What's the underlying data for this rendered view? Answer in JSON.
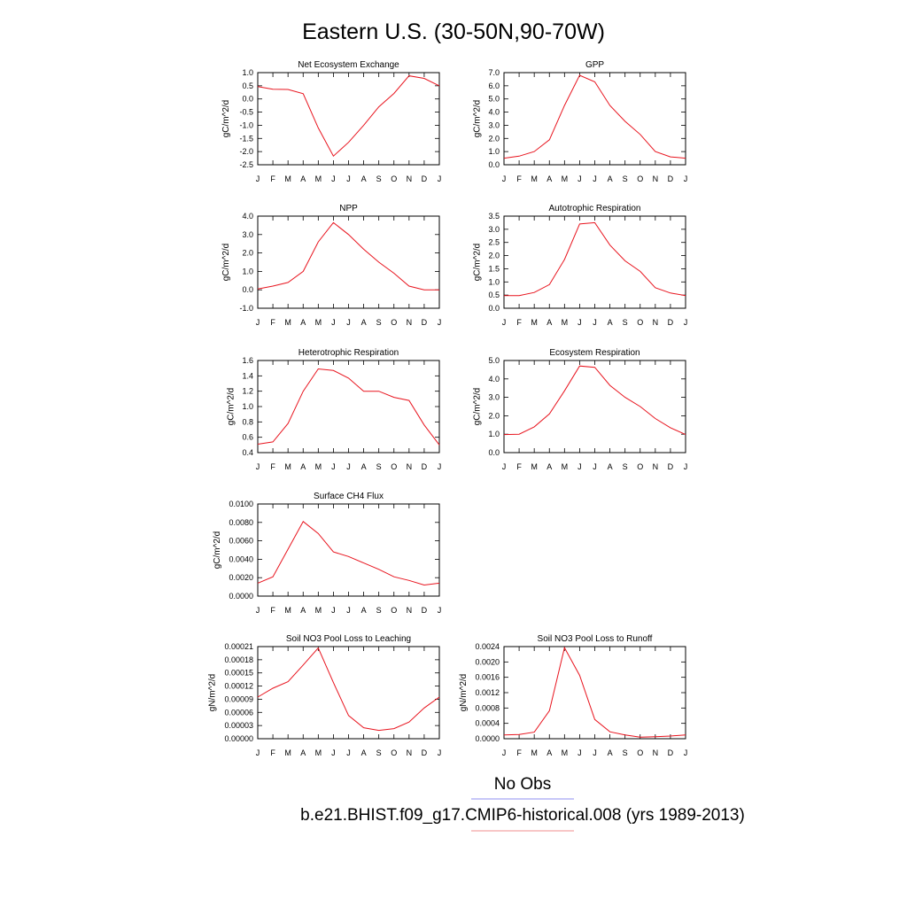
{
  "title": "Eastern U.S. (30-50N,90-70W)",
  "chart_data": [
    {
      "type": "line",
      "title": "Net Ecosystem Exchange",
      "ylabel": "gC/m^2/d",
      "categories": [
        "J",
        "F",
        "M",
        "A",
        "M",
        "J",
        "J",
        "A",
        "S",
        "O",
        "N",
        "D",
        "J"
      ],
      "values": [
        0.47,
        0.37,
        0.36,
        0.2,
        -1.1,
        -2.17,
        -1.65,
        -1.0,
        -0.3,
        0.21,
        0.88,
        0.78,
        0.5
      ],
      "ylim": [
        -2.5,
        1.0
      ],
      "yticks": [
        "1.0",
        "0.5",
        "0.0",
        "-0.5",
        "-1.0",
        "-1.5",
        "-2.0",
        "-2.5"
      ]
    },
    {
      "type": "line",
      "title": "GPP",
      "ylabel": "gC/m^2/d",
      "categories": [
        "J",
        "F",
        "M",
        "A",
        "M",
        "J",
        "J",
        "A",
        "S",
        "O",
        "N",
        "D",
        "J"
      ],
      "values": [
        0.5,
        0.65,
        1.0,
        1.9,
        4.5,
        6.8,
        6.3,
        4.5,
        3.3,
        2.3,
        1.0,
        0.6,
        0.5
      ],
      "ylim": [
        0.0,
        7.0
      ],
      "yticks": [
        "7.0",
        "6.0",
        "5.0",
        "4.0",
        "3.0",
        "2.0",
        "1.0",
        "0.0"
      ]
    },
    {
      "type": "line",
      "title": "NPP",
      "ylabel": "gC/m^2/d",
      "categories": [
        "J",
        "F",
        "M",
        "A",
        "M",
        "J",
        "J",
        "A",
        "S",
        "O",
        "N",
        "D",
        "J"
      ],
      "values": [
        0.05,
        0.2,
        0.4,
        1.0,
        2.6,
        3.65,
        3.0,
        2.2,
        1.5,
        0.9,
        0.2,
        0.0,
        0.0
      ],
      "ylim": [
        -1.0,
        4.0
      ],
      "yticks": [
        "4.0",
        "3.0",
        "2.0",
        "1.0",
        "0.0",
        "-1.0"
      ]
    },
    {
      "type": "line",
      "title": "Autotrophic Respiration",
      "ylabel": "gC/m^2/d",
      "categories": [
        "J",
        "F",
        "M",
        "A",
        "M",
        "J",
        "J",
        "A",
        "S",
        "O",
        "N",
        "D",
        "J"
      ],
      "values": [
        0.48,
        0.48,
        0.6,
        0.9,
        1.85,
        3.2,
        3.25,
        2.4,
        1.8,
        1.4,
        0.78,
        0.58,
        0.48
      ],
      "ylim": [
        0.0,
        3.5
      ],
      "yticks": [
        "3.5",
        "3.0",
        "2.5",
        "2.0",
        "1.5",
        "1.0",
        "0.5",
        "0.0"
      ]
    },
    {
      "type": "line",
      "title": "Heterotrophic Respiration",
      "ylabel": "gC/m^2/d",
      "categories": [
        "J",
        "F",
        "M",
        "A",
        "M",
        "J",
        "J",
        "A",
        "S",
        "O",
        "N",
        "D",
        "J"
      ],
      "values": [
        0.51,
        0.54,
        0.78,
        1.2,
        1.49,
        1.47,
        1.37,
        1.2,
        1.2,
        1.12,
        1.08,
        0.76,
        0.5
      ],
      "ylim": [
        0.4,
        1.6
      ],
      "yticks": [
        "1.6",
        "1.4",
        "1.2",
        "1.0",
        "0.8",
        "0.6",
        "0.4"
      ]
    },
    {
      "type": "line",
      "title": "Ecosystem Respiration",
      "ylabel": "gC/m^2/d",
      "categories": [
        "J",
        "F",
        "M",
        "A",
        "M",
        "J",
        "J",
        "A",
        "S",
        "O",
        "N",
        "D",
        "J"
      ],
      "values": [
        0.98,
        1.0,
        1.4,
        2.1,
        3.35,
        4.7,
        4.63,
        3.65,
        3.0,
        2.5,
        1.85,
        1.35,
        0.98
      ],
      "ylim": [
        0.0,
        5.0
      ],
      "yticks": [
        "5.0",
        "4.0",
        "3.0",
        "2.0",
        "1.0",
        "0.0"
      ]
    },
    {
      "type": "line",
      "title": "Surface CH4 Flux",
      "ylabel": "gC/m^2/d",
      "categories": [
        "J",
        "F",
        "M",
        "A",
        "M",
        "J",
        "J",
        "A",
        "S",
        "O",
        "N",
        "D",
        "J"
      ],
      "values": [
        0.0014,
        0.0021,
        0.0051,
        0.0081,
        0.0068,
        0.0048,
        0.0043,
        0.0036,
        0.0029,
        0.0021,
        0.0017,
        0.0012,
        0.0014
      ],
      "ylim": [
        0.0,
        0.01
      ],
      "yticks": [
        "0.0100",
        "0.0080",
        "0.0060",
        "0.0040",
        "0.0020",
        "0.0000"
      ]
    },
    {
      "type": "line",
      "title": "Soil NO3 Pool Loss to Leaching",
      "ylabel": "gN/m^2/d",
      "categories": [
        "J",
        "F",
        "M",
        "A",
        "M",
        "J",
        "J",
        "A",
        "S",
        "O",
        "N",
        "D",
        "J"
      ],
      "values": [
        9.5e-05,
        0.000115,
        0.00013,
        0.000168,
        0.000207,
        0.000128,
        5.3e-05,
        2.5e-05,
        1.9e-05,
        2.3e-05,
        3.8e-05,
        7e-05,
        9.5e-05
      ],
      "ylim": [
        0.0,
        0.00021
      ],
      "yticks": [
        "0.00021",
        "0.00018",
        "0.00015",
        "0.00012",
        "0.00009",
        "0.00006",
        "0.00003",
        "0.00000"
      ]
    },
    {
      "type": "line",
      "title": "Soil NO3 Pool Loss to Runoff",
      "ylabel": "gN/m^2/d",
      "categories": [
        "J",
        "F",
        "M",
        "A",
        "M",
        "J",
        "J",
        "A",
        "S",
        "O",
        "N",
        "D",
        "J"
      ],
      "values": [
        0.0001,
        0.00011,
        0.00017,
        0.00073,
        0.00237,
        0.00165,
        0.0005,
        0.00018,
        0.0001,
        4e-05,
        5e-05,
        7e-05,
        0.0001
      ],
      "ylim": [
        0.0,
        0.0024
      ],
      "yticks": [
        "0.0024",
        "0.0020",
        "0.0016",
        "0.0012",
        "0.0008",
        "0.0004",
        "0.0000"
      ]
    }
  ],
  "legend": {
    "obs_label": "No Obs",
    "obs_color": "#8f8ff0",
    "model_label": "b.e21.BHIST.f09_g17.CMIP6-historical.008 (yrs 1989-2013)",
    "model_color": "#f08f8f"
  },
  "series_color": "#e8141e"
}
